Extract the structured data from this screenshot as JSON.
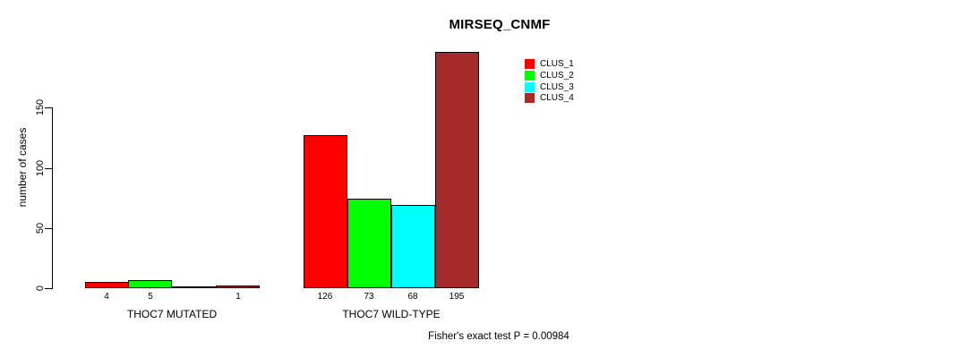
{
  "chart_data": {
    "type": "bar",
    "title": "MIRSEQ_CNMF",
    "ylabel": "number of cases",
    "xlabel": "",
    "ylim": [
      0,
      200
    ],
    "yticks": [
      0,
      50,
      100,
      150
    ],
    "grid": false,
    "legend_position": "upper-right",
    "categories": [
      "THOC7 MUTATED",
      "THOC7 WILD-TYPE"
    ],
    "series": [
      {
        "name": "CLUS_1",
        "color": "#FF0000",
        "values": [
          4,
          126
        ]
      },
      {
        "name": "CLUS_2",
        "color": "#00FF00",
        "values": [
          5,
          73
        ]
      },
      {
        "name": "CLUS_3",
        "color": "#00FFFF",
        "values": [
          0,
          68
        ]
      },
      {
        "name": "CLUS_4",
        "color": "#A52A2A",
        "values": [
          1,
          195
        ]
      }
    ],
    "bar_count_labels": [
      [
        "4",
        "5",
        "",
        "1"
      ],
      [
        "126",
        "73",
        "68",
        "195"
      ]
    ],
    "annotation": "Fisher's exact test P = 0.00984",
    "axis_color": "#000000",
    "background_color": "#FFFFFF"
  }
}
